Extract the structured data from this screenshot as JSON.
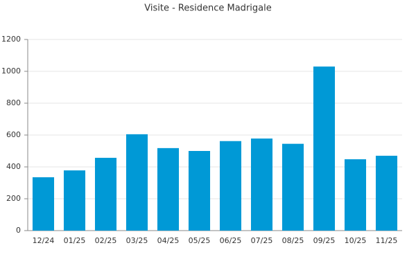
{
  "chart_data": {
    "type": "bar",
    "title": "Visite - Residence Madrigale",
    "categories": [
      "12/24",
      "01/25",
      "02/25",
      "03/25",
      "04/25",
      "05/25",
      "06/25",
      "07/25",
      "08/25",
      "09/25",
      "10/25",
      "11/25"
    ],
    "values": [
      335,
      378,
      457,
      605,
      518,
      500,
      562,
      578,
      545,
      1030,
      448,
      470
    ],
    "color": "#0099d6",
    "ylim": [
      0,
      1200
    ],
    "yticks": [
      0,
      200,
      400,
      600,
      800,
      1000,
      1200
    ],
    "grid": true
  }
}
